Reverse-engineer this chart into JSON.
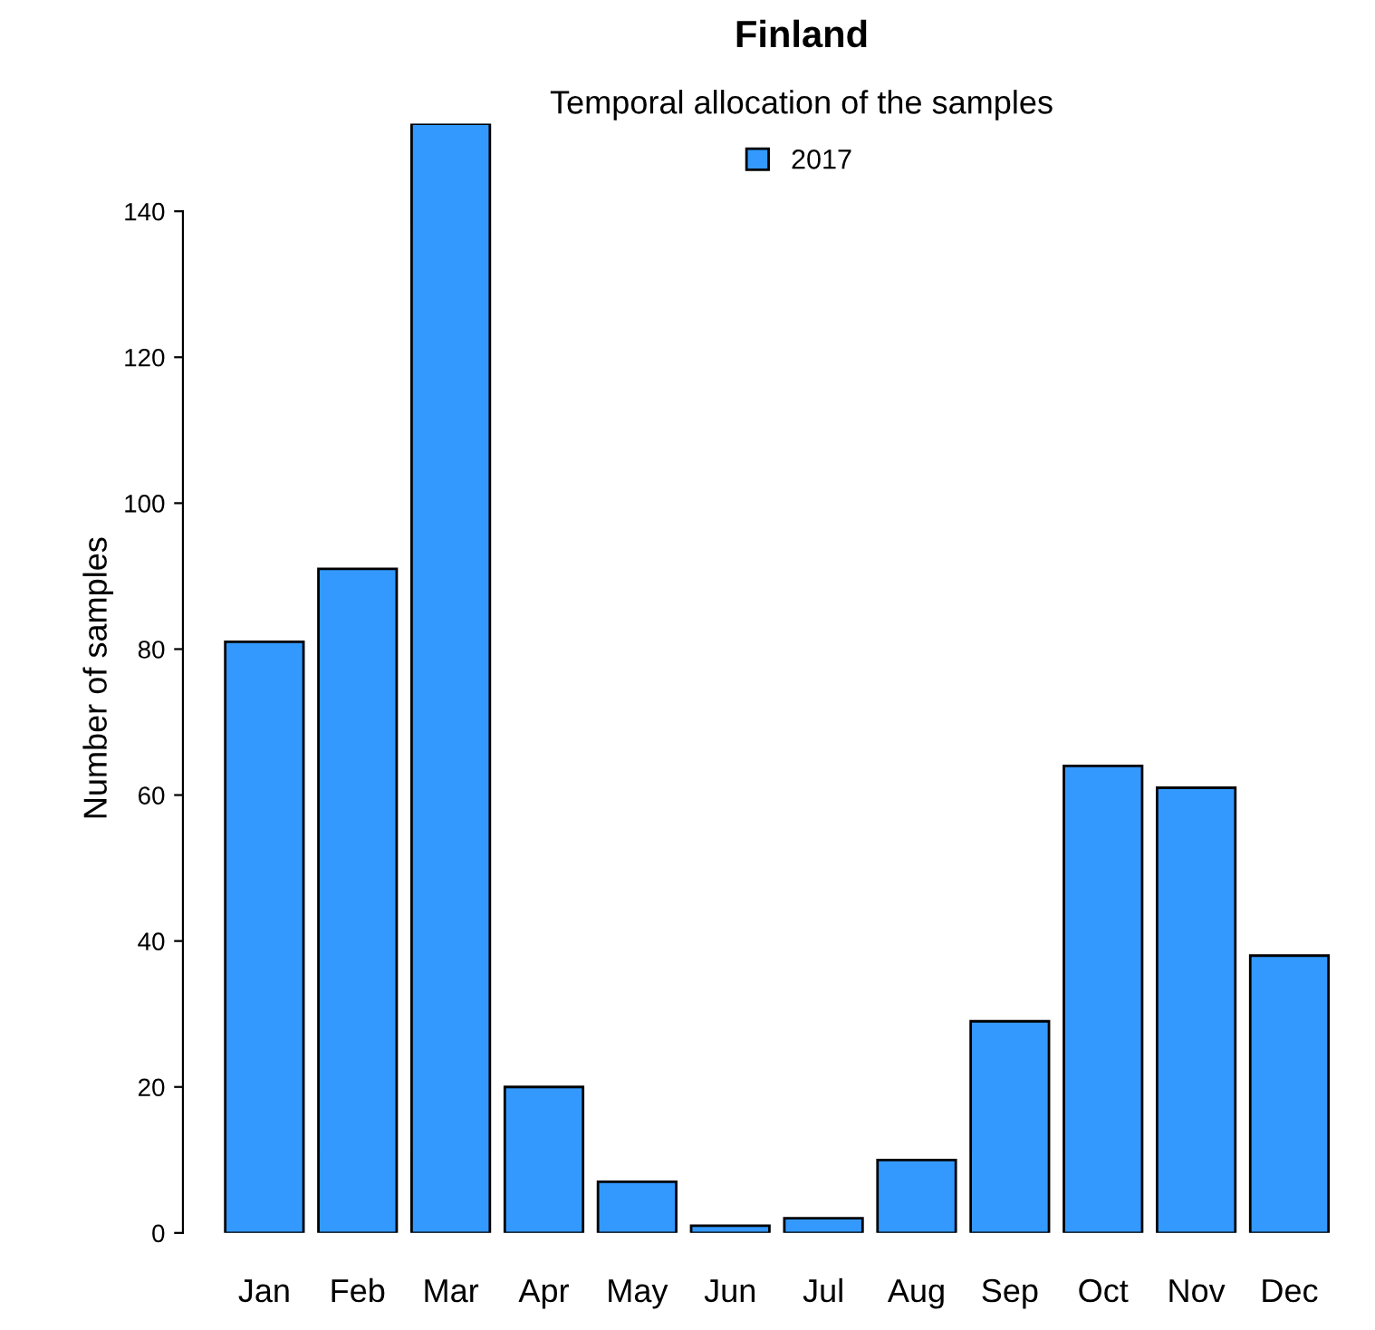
{
  "chart_data": {
    "type": "bar",
    "title": "Finland",
    "subtitle": "Temporal allocation of the samples",
    "ylabel": "Number of samples",
    "categories": [
      "Jan",
      "Feb",
      "Mar",
      "Apr",
      "May",
      "Jun",
      "Jul",
      "Aug",
      "Sep",
      "Oct",
      "Nov",
      "Dec"
    ],
    "series": [
      {
        "name": "2017",
        "color": "#3399ff",
        "values": [
          81,
          91,
          152,
          20,
          7,
          1,
          2,
          10,
          29,
          64,
          61,
          38
        ]
      }
    ],
    "ylim": [
      0,
      152
    ],
    "yticks": [
      0,
      20,
      40,
      60,
      80,
      100,
      120,
      140
    ],
    "grid": false,
    "legend": "top"
  }
}
